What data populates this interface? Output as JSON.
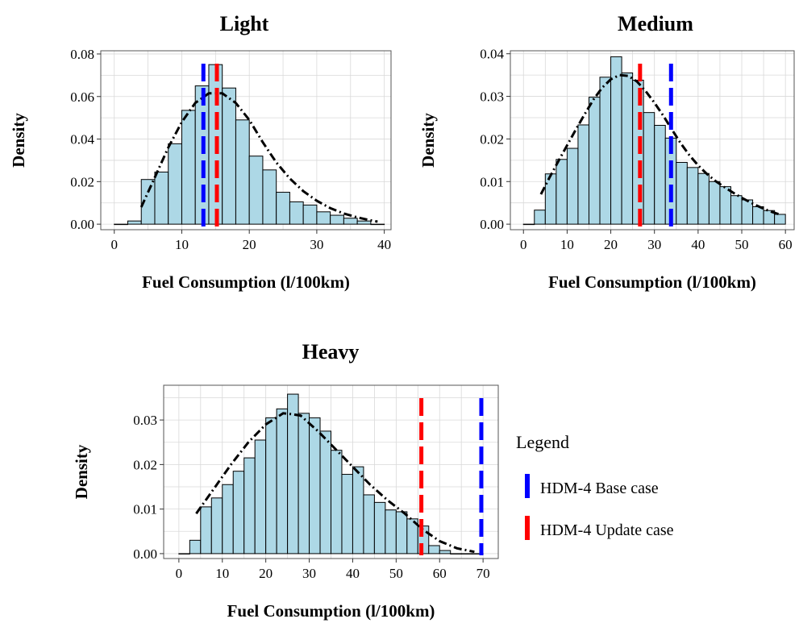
{
  "chart_data": [
    {
      "type": "histogram",
      "title": "Light",
      "xlabel": "Fuel Consumption (l/100km)",
      "ylabel": "Density",
      "xlim": [
        -2,
        41
      ],
      "ylim": [
        -0.0026,
        0.0815
      ],
      "xticks": [
        0,
        10,
        20,
        30,
        40
      ],
      "yticks": [
        0,
        0.02,
        0.04,
        0.06,
        0.08
      ],
      "ytick_labels": [
        "0.00",
        "0.02",
        "0.04",
        "0.06",
        "0.08"
      ],
      "grid": true,
      "bin_width": 2,
      "bin_starts": [
        0,
        2,
        4,
        6,
        8,
        10,
        12,
        14,
        16,
        18,
        20,
        22,
        24,
        26,
        28,
        30,
        32,
        34,
        36,
        38
      ],
      "density": [
        0.0,
        0.0015,
        0.021,
        0.0245,
        0.0378,
        0.0535,
        0.065,
        0.075,
        0.064,
        0.049,
        0.032,
        0.0255,
        0.015,
        0.0105,
        0.009,
        0.0058,
        0.0042,
        0.0028,
        0.0015,
        0.0
      ],
      "density_curve": {
        "x": [
          4,
          6,
          8,
          10,
          12,
          14,
          16,
          18,
          20,
          22,
          24,
          26,
          28,
          30,
          32,
          34,
          36,
          38,
          39
        ],
        "y": [
          0.008,
          0.022,
          0.036,
          0.048,
          0.057,
          0.0615,
          0.0615,
          0.057,
          0.049,
          0.0385,
          0.029,
          0.0215,
          0.0155,
          0.011,
          0.0075,
          0.005,
          0.0032,
          0.0018,
          0.0012
        ]
      },
      "vlines": [
        {
          "label": "HDM-4 Base case",
          "x": 13.2,
          "color": "#0000ff"
        },
        {
          "label": "HDM-4 Update case",
          "x": 15.2,
          "color": "#ff0000"
        }
      ]
    },
    {
      "type": "histogram",
      "title": "Medium",
      "xlabel": "Fuel Consumption (l/100km)",
      "ylabel": "Density",
      "xlim": [
        -3,
        62
      ],
      "ylim": [
        -0.0013,
        0.0407
      ],
      "xticks": [
        0,
        10,
        20,
        30,
        40,
        50,
        60
      ],
      "yticks": [
        0,
        0.01,
        0.02,
        0.03,
        0.04
      ],
      "ytick_labels": [
        "0.00",
        "0.01",
        "0.02",
        "0.03",
        "0.04"
      ],
      "grid": true,
      "bin_width": 2.5,
      "bin_starts": [
        0,
        2.5,
        5,
        7.5,
        10,
        12.5,
        15,
        17.5,
        20,
        22.5,
        25,
        27.5,
        30,
        32.5,
        35,
        37.5,
        40,
        42.5,
        45,
        47.5,
        50,
        52.5,
        55,
        57.5
      ],
      "density": [
        0.0,
        0.0033,
        0.0118,
        0.0152,
        0.0178,
        0.0233,
        0.0298,
        0.0345,
        0.0393,
        0.0355,
        0.0338,
        0.0262,
        0.0232,
        0.0202,
        0.0145,
        0.0133,
        0.0119,
        0.01,
        0.0088,
        0.0067,
        0.0057,
        0.0041,
        0.0032,
        0.0023
      ],
      "density_curve": {
        "x": [
          4,
          6,
          8,
          10,
          12,
          14,
          16,
          18,
          20,
          22,
          24,
          26,
          28,
          30,
          32,
          34,
          36,
          38,
          40,
          42,
          44,
          46,
          48,
          50,
          52,
          54,
          56,
          58,
          59
        ],
        "y": [
          0.007,
          0.011,
          0.0148,
          0.0185,
          0.0222,
          0.0258,
          0.0292,
          0.032,
          0.034,
          0.035,
          0.0348,
          0.0335,
          0.0312,
          0.0285,
          0.0255,
          0.0222,
          0.019,
          0.0162,
          0.0138,
          0.0118,
          0.0101,
          0.0087,
          0.0074,
          0.0062,
          0.0051,
          0.0041,
          0.0032,
          0.0025,
          0.0022
        ]
      },
      "vlines": [
        {
          "label": "HDM-4 Base case",
          "x": 33.8,
          "color": "#0000ff"
        },
        {
          "label": "HDM-4 Update case",
          "x": 26.7,
          "color": "#ff0000"
        }
      ]
    },
    {
      "type": "histogram",
      "title": "Heavy",
      "xlabel": "Fuel Consumption (l/100km)",
      "ylabel": "Density",
      "xlim": [
        -3.5,
        73.5
      ],
      "ylim": [
        -0.0011,
        0.0378
      ],
      "xticks": [
        0,
        10,
        20,
        30,
        40,
        50,
        60,
        70
      ],
      "yticks": [
        0,
        0.01,
        0.02,
        0.03
      ],
      "ytick_labels": [
        "0.00",
        "0.01",
        "0.02",
        "0.03"
      ],
      "grid": true,
      "bin_width": 2.5,
      "bin_starts": [
        0,
        2.5,
        5,
        7.5,
        10,
        12.5,
        15,
        17.5,
        20,
        22.5,
        25,
        27.5,
        30,
        32.5,
        35,
        37.5,
        40,
        42.5,
        45,
        47.5,
        50,
        52.5,
        55,
        57.5,
        60,
        62.5,
        65,
        67.5
      ],
      "density": [
        0.0,
        0.003,
        0.0105,
        0.0125,
        0.0155,
        0.0185,
        0.0215,
        0.0255,
        0.0305,
        0.0325,
        0.0358,
        0.0315,
        0.0305,
        0.0275,
        0.0232,
        0.0178,
        0.0195,
        0.0132,
        0.0115,
        0.0098,
        0.0094,
        0.0078,
        0.0062,
        0.0018,
        0.0007,
        0.0,
        0.0,
        0.0
      ],
      "density_curve": {
        "x": [
          4,
          8,
          12,
          16,
          20,
          24,
          26,
          28,
          32,
          36,
          40,
          44,
          48,
          52,
          56,
          60,
          64,
          68
        ],
        "y": [
          0.009,
          0.0145,
          0.02,
          0.025,
          0.029,
          0.0315,
          0.0313,
          0.031,
          0.0275,
          0.0235,
          0.0195,
          0.0155,
          0.012,
          0.009,
          0.0055,
          0.0028,
          0.0012,
          0.0004
        ]
      },
      "vlines": [
        {
          "label": "HDM-4 Base case",
          "x": 69.6,
          "color": "#0000ff"
        },
        {
          "label": "HDM-4 Update case",
          "x": 55.8,
          "color": "#ff0000"
        }
      ]
    }
  ],
  "legend": {
    "title": "Legend",
    "items": [
      {
        "label": "HDM-4 Base case",
        "color": "#0000ff"
      },
      {
        "label": "HDM-4 Update case",
        "color": "#ff0000"
      }
    ]
  },
  "colors": {
    "bar_fill": "#add8e6",
    "bar_stroke": "#000000",
    "grid": "#d9d9d9",
    "panel_border": "#555555"
  }
}
